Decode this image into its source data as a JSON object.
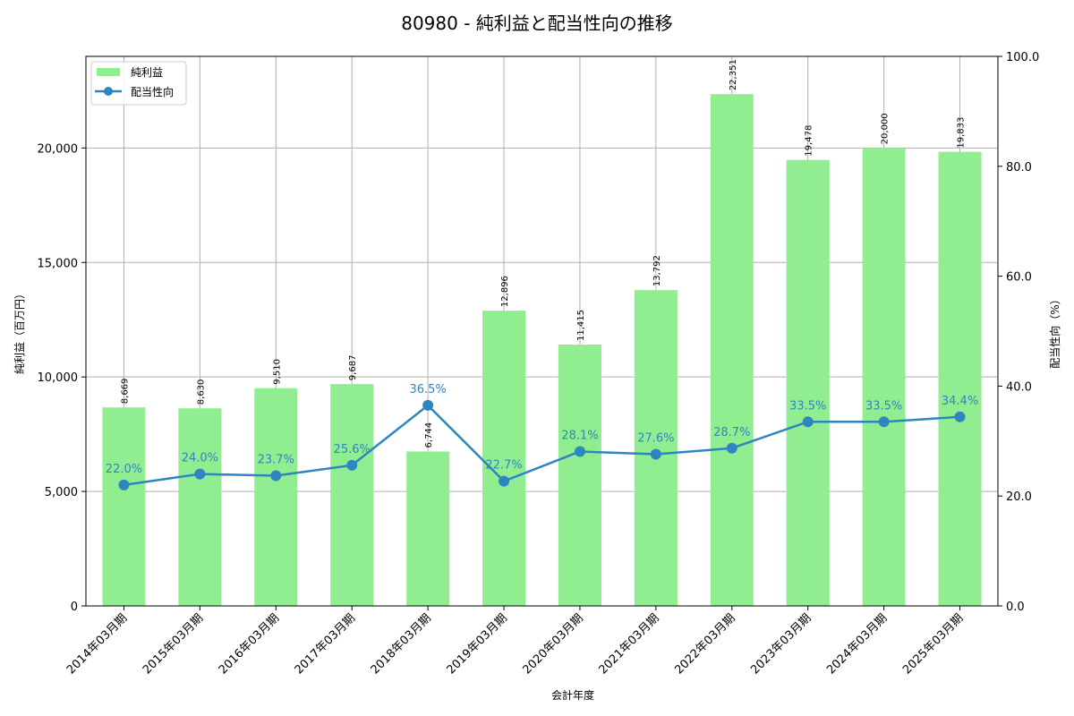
{
  "chart_data": {
    "type": "bar+line",
    "title": "80980 - 純利益と配当性向の推移",
    "xlabel": "会計年度",
    "ylabel": "純利益（百万円）",
    "y2label": "配当性向（%）",
    "categories": [
      "2014年03月期",
      "2015年03月期",
      "2016年03月期",
      "2017年03月期",
      "2018年03月期",
      "2019年03月期",
      "2020年03月期",
      "2021年03月期",
      "2022年03月期",
      "2023年03月期",
      "2024年03月期",
      "2025年03月期"
    ],
    "series": [
      {
        "name": "純利益",
        "type": "bar",
        "axis": "left",
        "color": "#90ee90",
        "values": [
          8669,
          8630,
          9510,
          9687,
          6744,
          12896,
          11415,
          13792,
          22351,
          19478,
          20000,
          19833
        ],
        "labels": [
          "8,669",
          "8,630",
          "9,510",
          "9,687",
          "6,744",
          "12,896",
          "11,415",
          "13,792",
          "22,351",
          "19,478",
          "20,000",
          "19,833"
        ]
      },
      {
        "name": "配当性向",
        "type": "line",
        "axis": "right",
        "color": "#2e86c1",
        "values": [
          22.0,
          24.0,
          23.7,
          25.6,
          36.5,
          22.7,
          28.1,
          27.6,
          28.7,
          33.5,
          33.5,
          34.4
        ],
        "labels": [
          "22.0%",
          "24.0%",
          "23.7%",
          "25.6%",
          "36.5%",
          "22.7%",
          "28.1%",
          "27.6%",
          "28.7%",
          "33.5%",
          "33.5%",
          "34.4%"
        ]
      }
    ],
    "ylim": [
      0,
      24000
    ],
    "y2lim": [
      0,
      100
    ],
    "yticks": [
      0,
      5000,
      10000,
      15000,
      20000
    ],
    "ytick_labels": [
      "0",
      "5,000",
      "10,000",
      "15,000",
      "20,000"
    ],
    "y2ticks": [
      0,
      20,
      40,
      60,
      80,
      100
    ],
    "y2tick_labels": [
      "0.0",
      "20.0",
      "40.0",
      "60.0",
      "80.0",
      "100.0"
    ],
    "grid": true,
    "legend_position": "upper left"
  }
}
